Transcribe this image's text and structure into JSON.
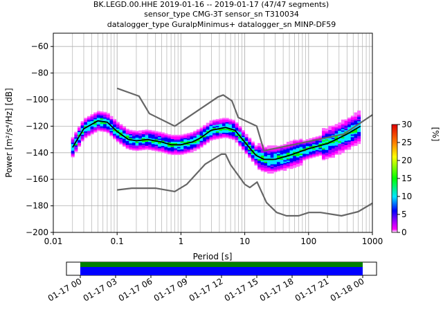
{
  "chart_data": {
    "type": "heatmap",
    "title_lines": [
      "BK.LEGD.00.HHE   2019-01-16 -- 2019-01-17  (47/47 segments)",
      "sensor_type CMG-3T sensor_sn T310034",
      "datalogger_type GuralpMinimus+ datalogger_sn MINP-DF59"
    ],
    "xlabel": "Period [s]",
    "ylabel": "Power [m²/s⁴/Hz] [dB]",
    "x_scale": "log",
    "xlim": [
      0.01,
      1000
    ],
    "ylim": [
      -200,
      -50
    ],
    "x_ticks": [
      {
        "value": 0.01,
        "label": "0.01"
      },
      {
        "value": 0.1,
        "label": "0.1"
      },
      {
        "value": 1,
        "label": "1"
      },
      {
        "value": 10,
        "label": "10"
      },
      {
        "value": 100,
        "label": "100"
      },
      {
        "value": 1000,
        "label": "1000"
      }
    ],
    "y_ticks": [
      {
        "value": -60,
        "label": "−60"
      },
      {
        "value": -80,
        "label": "−80"
      },
      {
        "value": -100,
        "label": "−100"
      },
      {
        "value": -120,
        "label": "−120"
      },
      {
        "value": -140,
        "label": "−140"
      },
      {
        "value": -160,
        "label": "−160"
      },
      {
        "value": -180,
        "label": "−180"
      },
      {
        "value": -200,
        "label": "−200"
      }
    ],
    "grid": true,
    "colorbar": {
      "label": "[%]",
      "range": [
        0,
        30
      ],
      "ticks": [
        {
          "value": 0,
          "label": "0"
        },
        {
          "value": 5,
          "label": "5"
        },
        {
          "value": 10,
          "label": "10"
        },
        {
          "value": 15,
          "label": "15"
        },
        {
          "value": 20,
          "label": "20"
        },
        {
          "value": 25,
          "label": "25"
        },
        {
          "value": 30,
          "label": "30"
        }
      ]
    },
    "series": [
      {
        "role": "mean",
        "color": "#000000",
        "points": [
          [
            0.02,
            -136
          ],
          [
            0.03,
            -122
          ],
          [
            0.05,
            -116
          ],
          [
            0.07,
            -117
          ],
          [
            0.1,
            -124
          ],
          [
            0.15,
            -130
          ],
          [
            0.2,
            -131
          ],
          [
            0.3,
            -130
          ],
          [
            0.5,
            -132
          ],
          [
            0.7,
            -134
          ],
          [
            1,
            -134
          ],
          [
            1.5,
            -132
          ],
          [
            2,
            -129
          ],
          [
            3,
            -123
          ],
          [
            5,
            -121
          ],
          [
            7,
            -123
          ],
          [
            10,
            -132
          ],
          [
            15,
            -142
          ],
          [
            20,
            -145
          ],
          [
            30,
            -145
          ],
          [
            50,
            -142
          ],
          [
            100,
            -137
          ],
          [
            200,
            -133
          ],
          [
            400,
            -126
          ],
          [
            650,
            -120
          ]
        ]
      },
      {
        "role": "noise-model-high",
        "color": "#666666",
        "points": [
          [
            0.1,
            -91.5
          ],
          [
            0.22,
            -97.4
          ],
          [
            0.32,
            -110.5
          ],
          [
            0.8,
            -120
          ],
          [
            3.8,
            -98
          ],
          [
            4.6,
            -96.5
          ],
          [
            6.3,
            -101
          ],
          [
            7.9,
            -113.5
          ],
          [
            15.4,
            -120
          ],
          [
            20,
            -138.5
          ],
          [
            354.8,
            -126
          ],
          [
            1000,
            -111.5
          ]
        ]
      },
      {
        "role": "noise-model-low",
        "color": "#666666",
        "points": [
          [
            0.1,
            -168
          ],
          [
            0.17,
            -166.7
          ],
          [
            0.4,
            -166.7
          ],
          [
            0.8,
            -169.2
          ],
          [
            1.24,
            -163.7
          ],
          [
            2.4,
            -148.6
          ],
          [
            4.3,
            -141.1
          ],
          [
            5,
            -141.1
          ],
          [
            6,
            -149
          ],
          [
            10,
            -163.8
          ],
          [
            12,
            -166.2
          ],
          [
            15.6,
            -162.1
          ],
          [
            21.9,
            -177.5
          ],
          [
            31.6,
            -185
          ],
          [
            45,
            -187.5
          ],
          [
            70,
            -187.5
          ],
          [
            101,
            -185
          ],
          [
            154,
            -185
          ],
          [
            328,
            -187.5
          ],
          [
            600,
            -184.4
          ],
          [
            1000,
            -178
          ]
        ]
      }
    ],
    "time_axis": {
      "tick_labels": [
        "01-17 00",
        "01-17 03",
        "01-17 06",
        "01-17 09",
        "01-17 12",
        "01-17 15",
        "01-17 18",
        "01-17 21",
        "01-18 00"
      ],
      "bars": [
        {
          "role": "data-coverage",
          "color": "#0000ff"
        },
        {
          "role": "segments",
          "color": "#008000"
        }
      ]
    }
  }
}
